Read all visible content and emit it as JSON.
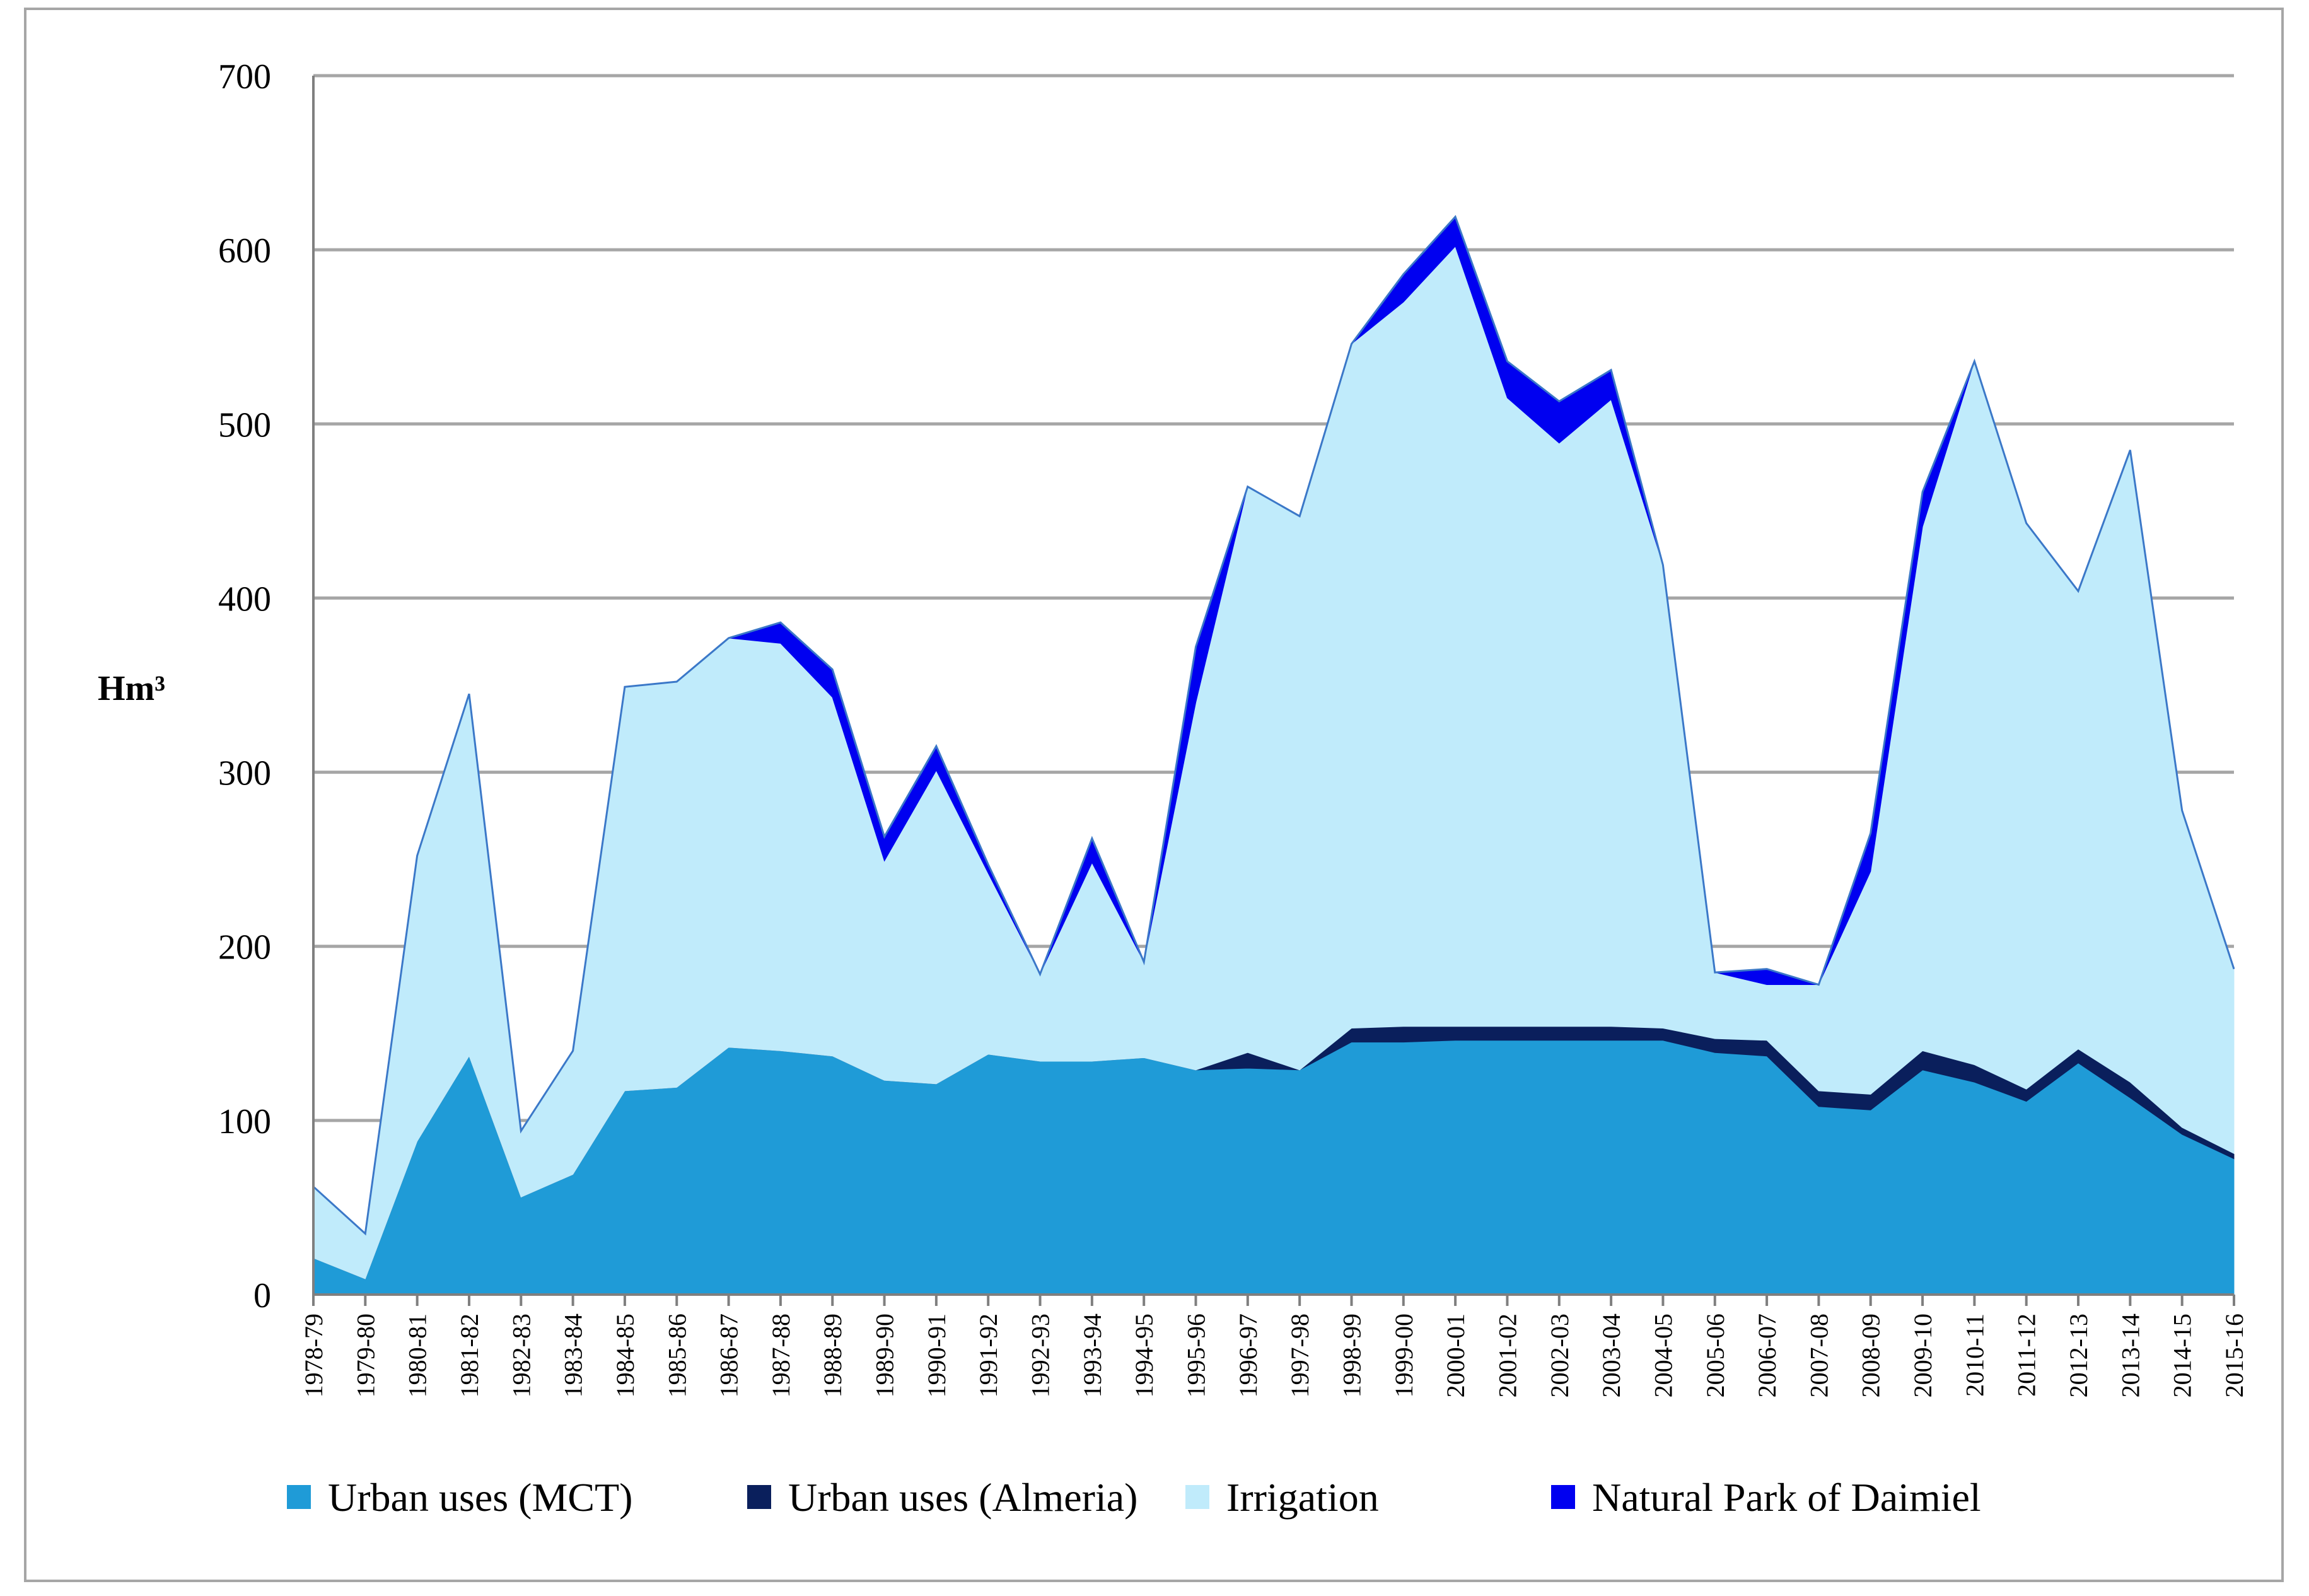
{
  "chart_data": {
    "type": "area",
    "stacked": true,
    "title": "",
    "xlabel": "",
    "ylabel": "Hm³",
    "ylim": [
      0,
      700
    ],
    "yticks": [
      0,
      100,
      200,
      300,
      400,
      500,
      600,
      700
    ],
    "grid": true,
    "legend_position": "bottom",
    "categories": [
      "1978-79",
      "1979-80",
      "1980-81",
      "1981-82",
      "1982-83",
      "1983-84",
      "1984-85",
      "1985-86",
      "1986-87",
      "1987-88",
      "1988-89",
      "1989-90",
      "1990-91",
      "1991-92",
      "1992-93",
      "1993-94",
      "1994-95",
      "1995-96",
      "1996-97",
      "1997-98",
      "1998-99",
      "1999-00",
      "2000-01",
      "2001-02",
      "2002-03",
      "2003-04",
      "2004-05",
      "2005-06",
      "2006-07",
      "2007-08",
      "2008-09",
      "2009-10",
      "2010-11",
      "2011-12",
      "2012-13",
      "2013-14",
      "2014-15",
      "2015-16"
    ],
    "series": [
      {
        "name": "Urban uses (MCT)",
        "color": "#1f9bd7",
        "values": [
          21,
          9,
          88,
          137,
          56,
          69,
          117,
          119,
          142,
          140,
          137,
          123,
          121,
          138,
          134,
          134,
          136,
          129,
          130,
          129,
          145,
          145,
          146,
          146,
          146,
          146,
          146,
          139,
          137,
          108,
          106,
          129,
          122,
          111,
          133,
          113,
          92,
          78
        ]
      },
      {
        "name": "Urban uses (Almeria)",
        "color": "#0a1f5c",
        "values": [
          0,
          0,
          0,
          0,
          0,
          0,
          0,
          0,
          0,
          0,
          0,
          0,
          0,
          0,
          0,
          0,
          0,
          0,
          9,
          0,
          8,
          9,
          8,
          8,
          8,
          8,
          7,
          8,
          9,
          9,
          9,
          11,
          10,
          7,
          8,
          9,
          4,
          3
        ]
      },
      {
        "name": "Irrigation",
        "color": "#c0ebfb",
        "values": [
          41,
          26,
          164,
          208,
          38,
          71,
          232,
          233,
          235,
          234,
          206,
          126,
          180,
          104,
          50,
          114,
          55,
          211,
          325,
          318,
          393,
          416,
          448,
          361,
          335,
          360,
          266,
          38,
          32,
          61,
          128,
          301,
          404,
          325,
          263,
          363,
          182,
          106
        ]
      },
      {
        "name": "Natural Park of Daimiel",
        "color": "#0000f0",
        "values": [
          0,
          0,
          0,
          0,
          0,
          0,
          0,
          0,
          0,
          12,
          16,
          14,
          14,
          5,
          0,
          14,
          0,
          32,
          0,
          0,
          0,
          16,
          17,
          21,
          24,
          17,
          0,
          0,
          9,
          0,
          22,
          20,
          0,
          0,
          0,
          0,
          0,
          0
        ]
      }
    ]
  }
}
